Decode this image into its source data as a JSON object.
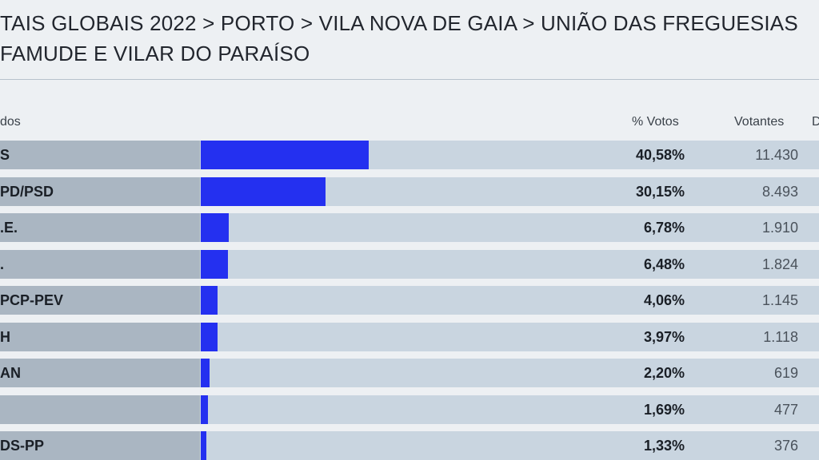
{
  "title": {
    "line1": "TAIS GLOBAIS 2022 > PORTO > VILA NOVA DE GAIA > UNIÃO DAS FREGUESIAS",
    "line2": "FAMUDE E VILAR DO PARAÍSO"
  },
  "header": {
    "party": "dos",
    "pct": "% Votos",
    "voters": "Votantes",
    "next": "D"
  },
  "chart_data": {
    "type": "bar",
    "orientation": "horizontal",
    "categories": [
      "S",
      "PD/PSD",
      ".E.",
      ".",
      "PCP-PEV",
      "H",
      "AN",
      "",
      "DS-PP"
    ],
    "values": [
      40.58,
      30.15,
      6.78,
      6.48,
      4.06,
      3.97,
      2.2,
      1.69,
      1.33
    ],
    "pct_labels": [
      "40,58%",
      "30,15%",
      "6,78%",
      "6,48%",
      "4,06%",
      "3,97%",
      "2,20%",
      "1,69%",
      "1,33%"
    ],
    "votes": [
      "11.430",
      "8.493",
      "1.910",
      "1.824",
      "1.145",
      "1.118",
      "619",
      "477",
      "376"
    ],
    "xlim": [
      0,
      100
    ],
    "bar_color": "#2430f0"
  }
}
